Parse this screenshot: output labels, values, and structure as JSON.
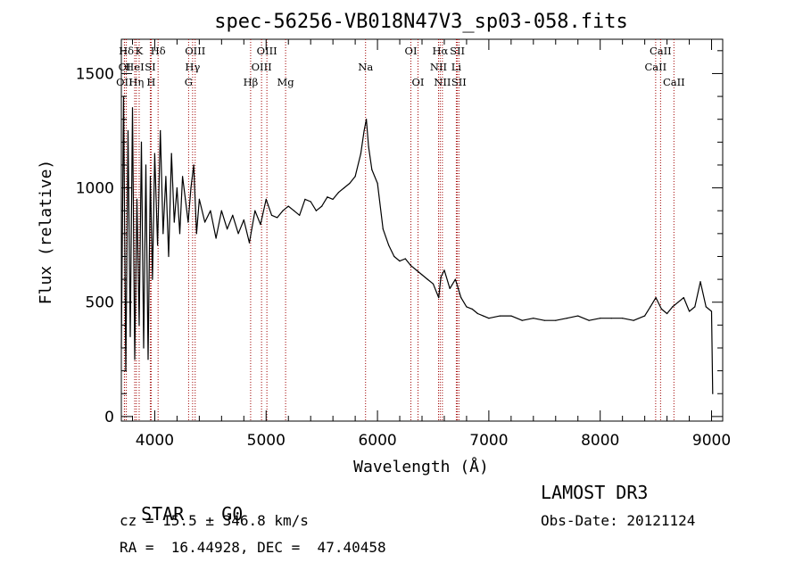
{
  "chart_data": {
    "type": "line",
    "title": "spec-56256-VB018N47V3_sp03-058.fits",
    "xlabel": "Wavelength (Å)",
    "ylabel": "Flux (relative)",
    "xlim": [
      3700,
      9100
    ],
    "ylim": [
      -20,
      1650
    ],
    "x_ticks": [
      4000,
      5000,
      6000,
      7000,
      8000,
      9000
    ],
    "y_ticks": [
      0,
      500,
      1000,
      1500
    ],
    "series": [
      {
        "name": "flux",
        "x": [
          3700,
          3720,
          3740,
          3760,
          3780,
          3800,
          3820,
          3840,
          3860,
          3880,
          3900,
          3920,
          3940,
          3960,
          3980,
          4000,
          4025,
          4050,
          4075,
          4100,
          4125,
          4150,
          4175,
          4200,
          4225,
          4250,
          4275,
          4300,
          4325,
          4350,
          4375,
          4400,
          4450,
          4500,
          4550,
          4600,
          4650,
          4700,
          4750,
          4800,
          4850,
          4900,
          4950,
          5000,
          5050,
          5100,
          5150,
          5200,
          5250,
          5300,
          5350,
          5400,
          5450,
          5500,
          5550,
          5600,
          5650,
          5700,
          5750,
          5800,
          5850,
          5880,
          5900,
          5920,
          5950,
          6000,
          6050,
          6100,
          6150,
          6200,
          6250,
          6300,
          6350,
          6400,
          6450,
          6500,
          6550,
          6570,
          6600,
          6650,
          6700,
          6750,
          6800,
          6850,
          6900,
          6950,
          7000,
          7100,
          7200,
          7300,
          7400,
          7500,
          7600,
          7700,
          7800,
          7900,
          8000,
          8100,
          8200,
          8300,
          8400,
          8450,
          8500,
          8550,
          8600,
          8650,
          8700,
          8750,
          8800,
          8850,
          8900,
          8950,
          9000,
          9010
        ],
        "values": [
          300,
          1400,
          200,
          1250,
          350,
          1350,
          250,
          950,
          400,
          1200,
          300,
          1100,
          250,
          1050,
          600,
          1150,
          750,
          1250,
          800,
          1050,
          700,
          1150,
          850,
          1000,
          800,
          1050,
          950,
          850,
          1000,
          1100,
          800,
          950,
          850,
          900,
          780,
          900,
          820,
          880,
          800,
          860,
          760,
          900,
          840,
          950,
          880,
          870,
          900,
          920,
          900,
          880,
          950,
          940,
          900,
          920,
          960,
          950,
          980,
          1000,
          1020,
          1050,
          1150,
          1250,
          1300,
          1180,
          1080,
          1020,
          820,
          750,
          700,
          680,
          690,
          660,
          640,
          620,
          600,
          580,
          520,
          610,
          640,
          560,
          600,
          520,
          480,
          470,
          450,
          440,
          430,
          440,
          440,
          420,
          430,
          420,
          420,
          430,
          440,
          420,
          430,
          430,
          430,
          420,
          440,
          480,
          520,
          470,
          450,
          480,
          500,
          520,
          460,
          480,
          590,
          480,
          460,
          100
        ]
      }
    ],
    "spectral_lines": [
      {
        "name": "Hδ",
        "lambda": 3745,
        "row": 0
      },
      {
        "name": "K",
        "lambda": 3860,
        "row": 0
      },
      {
        "name": "Hδ",
        "lambda": 4030,
        "row": 0
      },
      {
        "name": "OIII",
        "lambda": 4363,
        "row": 0
      },
      {
        "name": "OIII",
        "lambda": 5007,
        "row": 0
      },
      {
        "name": "OI",
        "lambda": 6300,
        "row": 0
      },
      {
        "name": "Hα",
        "lambda": 6563,
        "row": 0
      },
      {
        "name": "SII",
        "lambda": 6717,
        "row": 0
      },
      {
        "name": "CaII",
        "lambda": 8542,
        "row": 0
      },
      {
        "name": "OI",
        "lambda": 3729,
        "row": 1
      },
      {
        "name": "HeI",
        "lambda": 3820,
        "row": 1
      },
      {
        "name": "SI",
        "lambda": 3960,
        "row": 1
      },
      {
        "name": "Hγ",
        "lambda": 4340,
        "row": 1
      },
      {
        "name": "OIII",
        "lambda": 4959,
        "row": 1
      },
      {
        "name": "Na",
        "lambda": 5893,
        "row": 1
      },
      {
        "name": "NII",
        "lambda": 6548,
        "row": 1
      },
      {
        "name": "Li",
        "lambda": 6708,
        "row": 1
      },
      {
        "name": "CaII",
        "lambda": 8498,
        "row": 1
      },
      {
        "name": "OII",
        "lambda": 3727,
        "row": 2
      },
      {
        "name": "Hη",
        "lambda": 3835,
        "row": 2
      },
      {
        "name": "H",
        "lambda": 3968,
        "row": 2
      },
      {
        "name": "G",
        "lambda": 4304,
        "row": 2
      },
      {
        "name": "Hβ",
        "lambda": 4861,
        "row": 2
      },
      {
        "name": "Mg",
        "lambda": 5175,
        "row": 2
      },
      {
        "name": "OI",
        "lambda": 6364,
        "row": 2
      },
      {
        "name": "NII",
        "lambda": 6583,
        "row": 2
      },
      {
        "name": "SII",
        "lambda": 6731,
        "row": 2
      },
      {
        "name": "CaII",
        "lambda": 8662,
        "row": 2
      }
    ]
  },
  "info": {
    "class_label": "STAR",
    "subclass": "G0",
    "survey": "LAMOST DR3",
    "cz": "cz = 15.5 ± 346.8 km/s",
    "obs_date": "Obs-Date: 20121124",
    "coords": "RA =  16.44928, DEC =  47.40458"
  },
  "colors": {
    "line_marker": "#a00000",
    "spectrum": "#000000",
    "background": "#ffffff"
  }
}
